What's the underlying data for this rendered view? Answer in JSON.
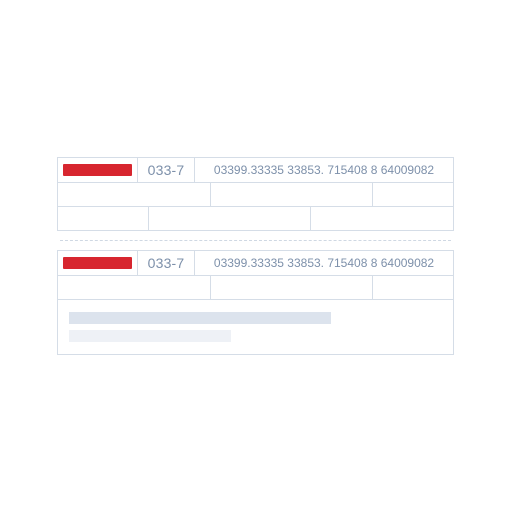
{
  "slips": [
    {
      "bank_code": "033-7",
      "digitable_line": "03399.33335 33853. 715408 8 64009082",
      "logo_color": "#d7262f"
    },
    {
      "bank_code": "033-7",
      "digitable_line": "03399.33335 33853. 715408 8 64009082",
      "logo_color": "#d7262f"
    }
  ],
  "colors": {
    "border": "#d5dde7",
    "text": "#7d90aa",
    "skeleton_primary": "#dce3ed",
    "skeleton_secondary": "#eef1f6"
  },
  "icons": {
    "bank_logo": "bank-logo-placeholder"
  }
}
